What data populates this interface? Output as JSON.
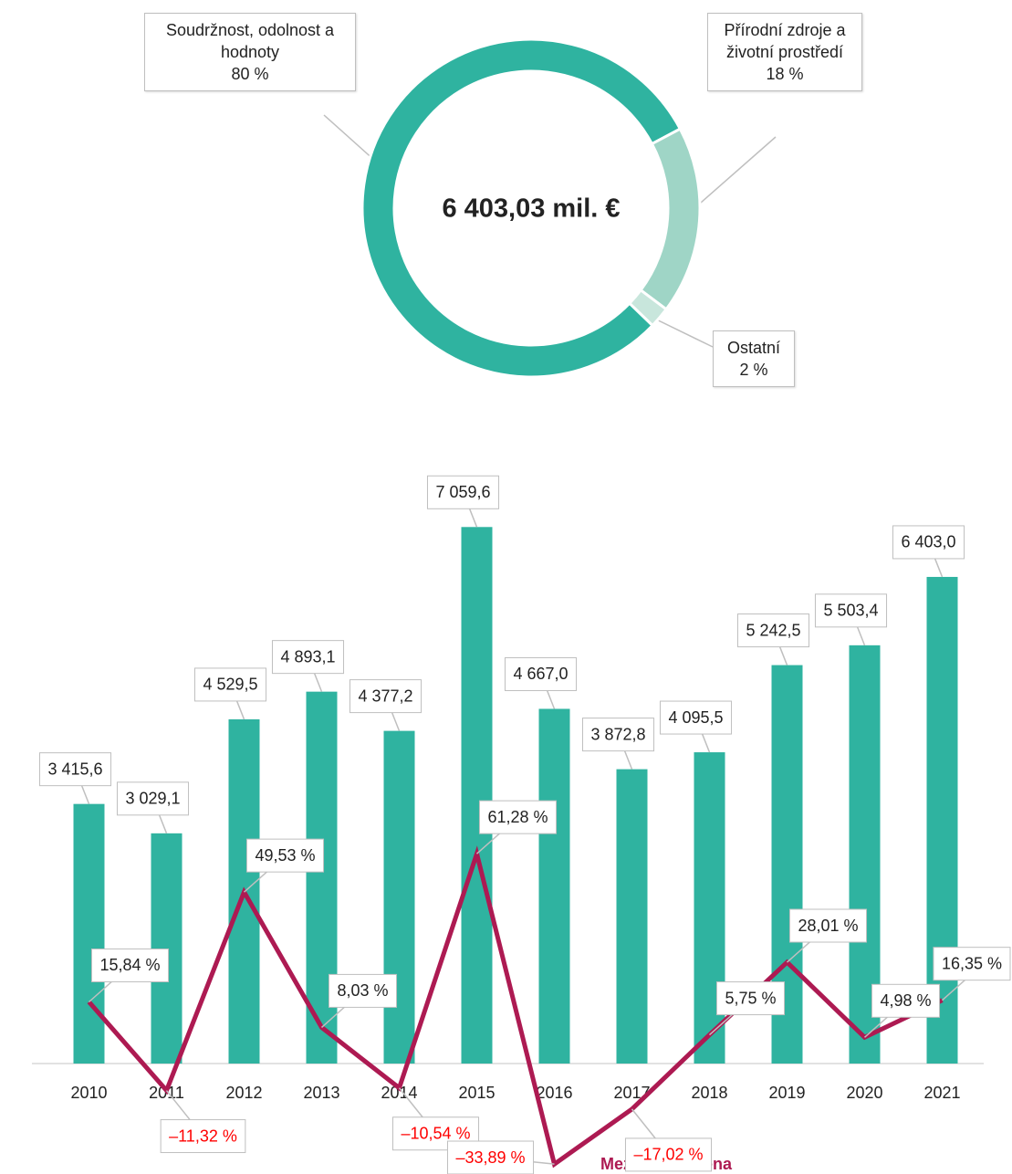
{
  "chart_data": [
    {
      "type": "donut",
      "center_label": "6 403,03 mil. €",
      "categories": [
        "Soudržnost, odolnost a hodnoty",
        "Přírodní zdroje a životní prostředí",
        "Ostatní"
      ],
      "values": [
        80,
        18,
        2
      ],
      "value_labels": [
        "80 %",
        "18 %",
        "2 %"
      ],
      "colors": [
        "#2fb3a0",
        "#9fd5c6",
        "#c8e6dc"
      ]
    },
    {
      "type": "bar_line",
      "categories": [
        "2010",
        "2011",
        "2012",
        "2013",
        "2014",
        "2015",
        "2016",
        "2017",
        "2018",
        "2019",
        "2020",
        "2021"
      ],
      "ylim": [
        0,
        8000
      ],
      "y2lim": [
        -40,
        70
      ],
      "series": [
        {
          "name": null,
          "type": "bar",
          "color": "#2fb3a0",
          "values": [
            3415.6,
            3029.1,
            4529.5,
            4893.1,
            4377.2,
            7059.6,
            4667.0,
            3872.8,
            4095.5,
            5242.5,
            5503.4,
            6403.0
          ],
          "value_labels": [
            "3 415,6",
            "3 029,1",
            "4 529,5",
            "4 893,1",
            "4 377,2",
            "7 059,6",
            "4 667,0",
            "3 872,8",
            "4 095,5",
            "5 242,5",
            "5 503,4",
            "6 403,0"
          ]
        },
        {
          "name": "Meziroční změna",
          "type": "line",
          "axis": "y2",
          "color": "#ad1a52",
          "negative_label_color": "#ff0000",
          "values": [
            15.84,
            -11.32,
            49.53,
            8.03,
            -10.54,
            61.28,
            -33.89,
            -17.02,
            5.75,
            28.01,
            4.98,
            16.35
          ],
          "value_labels": [
            "15,84 %",
            "–11,32 %",
            "49,53 %",
            "8,03 %",
            "–10,54 %",
            "61,28 %",
            "–33,89 %",
            "–17,02 %",
            "5,75 %",
            "28,01 %",
            "4,98 %",
            "16,35 %"
          ]
        }
      ]
    }
  ]
}
